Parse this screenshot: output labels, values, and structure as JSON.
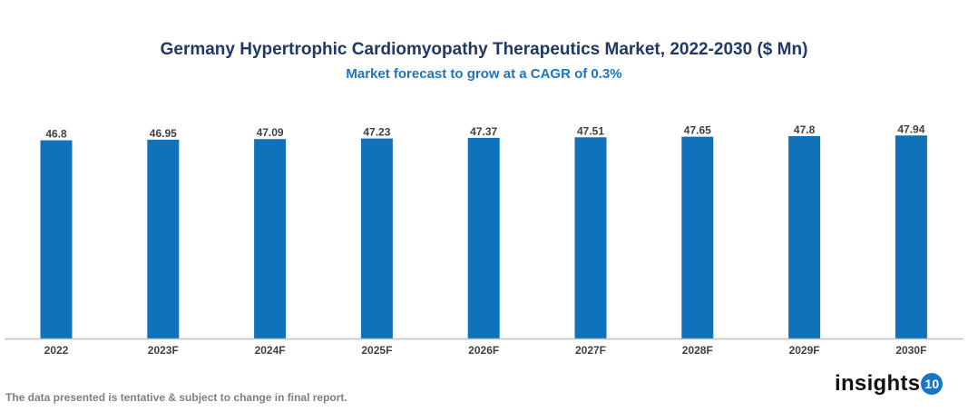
{
  "chart_data": {
    "type": "bar",
    "title": "Germany Hypertrophic Cardiomyopathy Therapeutics Market, 2022-2030 ($ Mn)",
    "subtitle": "Market forecast to grow at a CAGR of 0.3%",
    "categories": [
      "2022",
      "2023F",
      "2024F",
      "2025F",
      "2026F",
      "2027F",
      "2028F",
      "2029F",
      "2030F"
    ],
    "values": [
      46.8,
      46.95,
      47.09,
      47.23,
      47.37,
      47.51,
      47.65,
      47.8,
      47.94
    ],
    "data_labels": [
      "46.8",
      "46.95",
      "47.09",
      "47.23",
      "47.37",
      "47.51",
      "47.65",
      "47.8",
      "47.94"
    ],
    "xlabel": "",
    "ylabel": "",
    "ylim": [
      0,
      48
    ],
    "grid": false,
    "y_axis_visible": false,
    "bar_color": "#1172bc"
  },
  "footer": {
    "note": "The data presented is tentative & subject to change in final report.",
    "logo_text": "insights",
    "logo_badge": "10"
  }
}
